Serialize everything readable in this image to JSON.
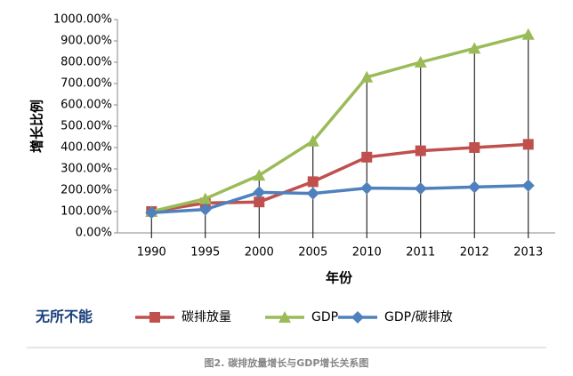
{
  "chart_data": {
    "type": "line",
    "y_label": "增长比例",
    "x_label": "年份",
    "categories": [
      "1990",
      "1995",
      "2000",
      "2005",
      "2010",
      "2011",
      "2012",
      "2013"
    ],
    "series": [
      {
        "name": "碳排放量",
        "color": "#c0504d",
        "marker": "square",
        "values": [
          100,
          140,
          145,
          240,
          355,
          385,
          400,
          415
        ]
      },
      {
        "name": "GDP",
        "color": "#9bbb59",
        "marker": "triangle",
        "values": [
          100,
          160,
          270,
          430,
          730,
          800,
          865,
          930
        ]
      },
      {
        "name": "GDP/碳排放",
        "color": "#4f81bd",
        "marker": "diamond",
        "values": [
          95,
          110,
          190,
          185,
          210,
          208,
          215,
          222
        ]
      }
    ],
    "ylim": [
      0,
      1000
    ],
    "yticks": [
      {
        "value": 0,
        "label": "0.00%"
      },
      {
        "value": 100,
        "label": "100.00%"
      },
      {
        "value": 200,
        "label": "200.00%"
      },
      {
        "value": 300,
        "label": "300.00%"
      },
      {
        "value": 400,
        "label": "400.00%"
      },
      {
        "value": 500,
        "label": "500.00%"
      },
      {
        "value": 600,
        "label": "600.00%"
      },
      {
        "value": 700,
        "label": "700.00%"
      },
      {
        "value": 800,
        "label": "800.00%"
      },
      {
        "value": 900,
        "label": "900.00%"
      },
      {
        "value": 1000,
        "label": "1000.00%"
      }
    ],
    "drop_lines": true,
    "logo": "无所不能",
    "caption": "图2. 碳排放量增长与GDP增长关系图"
  }
}
